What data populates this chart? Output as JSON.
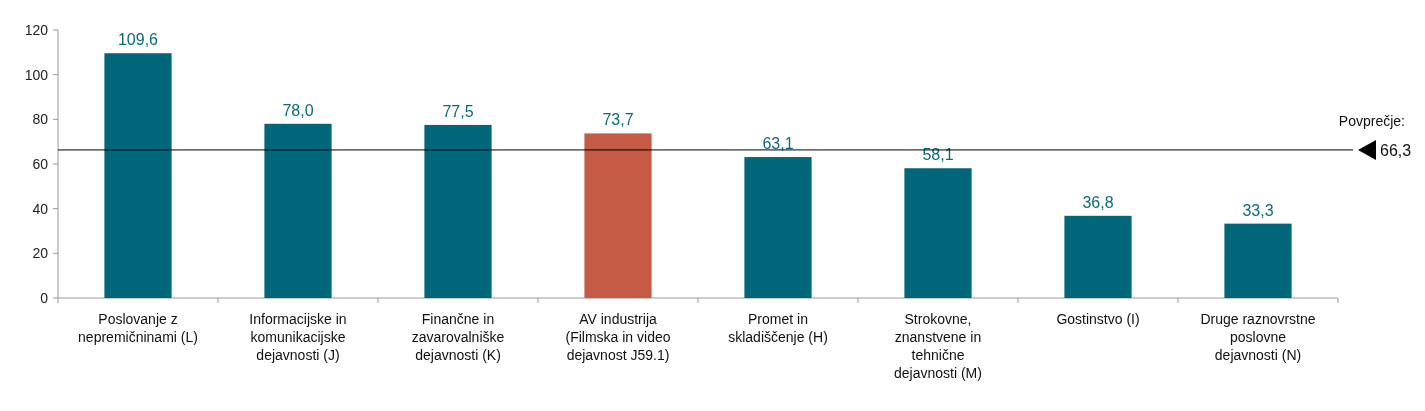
{
  "chart_data": {
    "type": "bar",
    "categories": [
      "Poslovanje z nepremičninami (L)",
      "Informacijske in komunikacijske dejavnosti (J)",
      "Finančne in zavarovalniške dejavnosti (K)",
      "AV industrija (Filmska in video dejavnost J59.1)",
      "Promet in skladiščenje (H)",
      "Strokovne, znanstvene in tehnične dejavnosti (M)",
      "Gostinstvo (I)",
      "Druge raznovrstne poslovne dejavnosti (N)"
    ],
    "values": [
      109.6,
      78.0,
      77.5,
      73.7,
      63.1,
      58.1,
      36.8,
      33.3
    ],
    "value_labels": [
      "109,6",
      "78,0",
      "77,5",
      "73,7",
      "63,1",
      "58,1",
      "36,8",
      "33,3"
    ],
    "colors": [
      "#02667a",
      "#02667a",
      "#02667a",
      "#c65b45",
      "#02667a",
      "#02667a",
      "#02667a",
      "#02667a"
    ],
    "ylim": [
      0,
      120
    ],
    "yticks": [
      0,
      20,
      40,
      60,
      80,
      100,
      120
    ],
    "ref_lines": [
      {
        "axis": "y",
        "value": 66.3,
        "label": "Povprečje:\n66,3",
        "color": "#000000"
      }
    ]
  }
}
